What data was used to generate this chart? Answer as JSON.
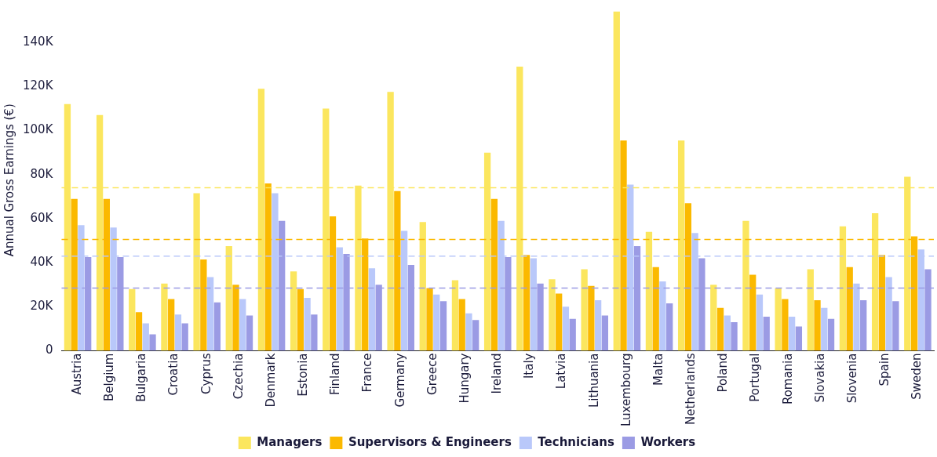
{
  "chart_data": {
    "type": "bar",
    "ylabel": "Annual Gross Earnings (€)",
    "categories": [
      "Austria",
      "Belgium",
      "Bulgaria",
      "Croatia",
      "Cyprus",
      "Czechia",
      "Denmark",
      "Estonia",
      "Finland",
      "France",
      "Germany",
      "Greece",
      "Hungary",
      "Ireland",
      "Italy",
      "Latvia",
      "Lithuania",
      "Luxembourg",
      "Malta",
      "Netherlands",
      "Poland",
      "Portugal",
      "Romania",
      "Slovakia",
      "Slovenia",
      "Spain",
      "Sweden"
    ],
    "series": [
      {
        "name": "Managers",
        "color": "#fbe65e",
        "values": [
          112000,
          107000,
          28000,
          30500,
          71500,
          47500,
          119000,
          36000,
          110000,
          75000,
          117500,
          58500,
          32000,
          90000,
          129000,
          32500,
          37000,
          154000,
          54000,
          95500,
          30000,
          59000,
          28500,
          37000,
          56500,
          62500,
          79000
        ]
      },
      {
        "name": "Supervisors & Engineers",
        "color": "#fbb900",
        "values": [
          69000,
          69000,
          17500,
          23500,
          41500,
          30000,
          76000,
          28000,
          61000,
          51000,
          72500,
          28500,
          23500,
          69000,
          43500,
          26000,
          29500,
          95500,
          38000,
          67000,
          19500,
          34500,
          23500,
          23000,
          38000,
          43500,
          52000
        ]
      },
      {
        "name": "Technicians",
        "color": "#b9c8fa",
        "values": [
          57000,
          56000,
          12500,
          16500,
          33500,
          23500,
          71500,
          24000,
          47000,
          37500,
          54500,
          25500,
          17000,
          59000,
          42000,
          20000,
          23000,
          75500,
          31500,
          53500,
          16000,
          25500,
          15500,
          19500,
          30500,
          33500,
          46000
        ]
      },
      {
        "name": "Workers",
        "color": "#9b9be4",
        "values": [
          42500,
          42500,
          7500,
          12500,
          22000,
          16000,
          59000,
          16500,
          44000,
          30000,
          39000,
          22500,
          14000,
          42500,
          30500,
          14500,
          16000,
          47500,
          21500,
          42000,
          13000,
          15500,
          11000,
          14500,
          23000,
          22500,
          37000
        ]
      }
    ],
    "ylim": [
      0,
      155000
    ],
    "yticks": [
      {
        "value": 0,
        "label": "0"
      },
      {
        "value": 20000,
        "label": "20K"
      },
      {
        "value": 40000,
        "label": "40K"
      },
      {
        "value": 60000,
        "label": "60K"
      },
      {
        "value": 80000,
        "label": "80K"
      },
      {
        "value": 100000,
        "label": "100K"
      },
      {
        "value": 120000,
        "label": "120K"
      },
      {
        "value": 140000,
        "label": "140K"
      }
    ],
    "ref_lines": [
      {
        "axis": "y",
        "value": 74000,
        "color": "#fbe65e",
        "line_style": "dashed"
      },
      {
        "axis": "y",
        "value": 50500,
        "color": "#fbb900",
        "line_style": "dashed"
      },
      {
        "axis": "y",
        "value": 43000,
        "color": "#b9c8fa",
        "line_style": "dashed"
      },
      {
        "axis": "y",
        "value": 28500,
        "color": "#9b9be4",
        "line_style": "dashed"
      }
    ],
    "grid": false,
    "legend": "bottom"
  }
}
